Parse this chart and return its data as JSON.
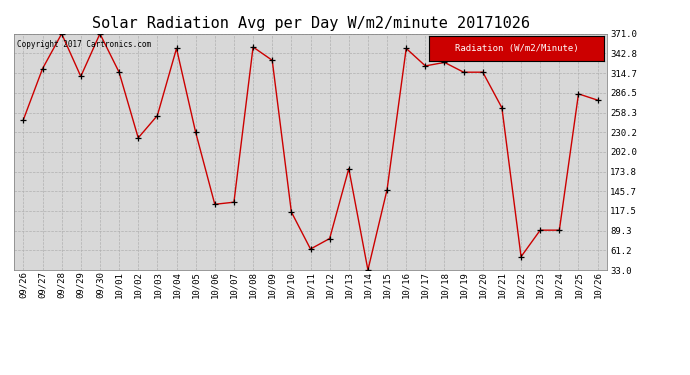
{
  "title": "Solar Radiation Avg per Day W/m2/minute 20171026",
  "copyright_text": "Copyright 2017 Cartronics.com",
  "legend_label": "Radiation (W/m2/Minute)",
  "dates": [
    "09/26",
    "09/27",
    "09/28",
    "09/29",
    "09/30",
    "10/01",
    "10/02",
    "10/03",
    "10/04",
    "10/05",
    "10/06",
    "10/07",
    "10/08",
    "10/09",
    "10/10",
    "10/11",
    "10/12",
    "10/13",
    "10/14",
    "10/15",
    "10/16",
    "10/17",
    "10/18",
    "10/19",
    "10/20",
    "10/21",
    "10/22",
    "10/23",
    "10/24",
    "10/25",
    "10/26"
  ],
  "values": [
    248,
    321,
    371,
    310,
    371,
    316,
    222,
    254,
    350,
    230,
    127,
    130,
    352,
    333,
    116,
    63,
    78,
    178,
    33,
    148,
    350,
    325,
    330,
    316,
    316,
    265,
    52,
    90,
    90,
    285,
    276
  ],
  "line_color": "#cc0000",
  "marker_color": "#000000",
  "bg_color": "#ffffff",
  "plot_bg_color": "#d8d8d8",
  "grid_color": "#b0b0b0",
  "ylim_min": 33.0,
  "ylim_max": 371.0,
  "yticks": [
    33.0,
    61.2,
    89.3,
    117.5,
    145.7,
    173.8,
    202.0,
    230.2,
    258.3,
    286.5,
    314.7,
    342.8,
    371.0
  ],
  "title_fontsize": 11,
  "axis_fontsize": 6.5,
  "legend_bg": "#cc0000",
  "legend_text_color": "#ffffff",
  "legend_fontsize": 6.5
}
